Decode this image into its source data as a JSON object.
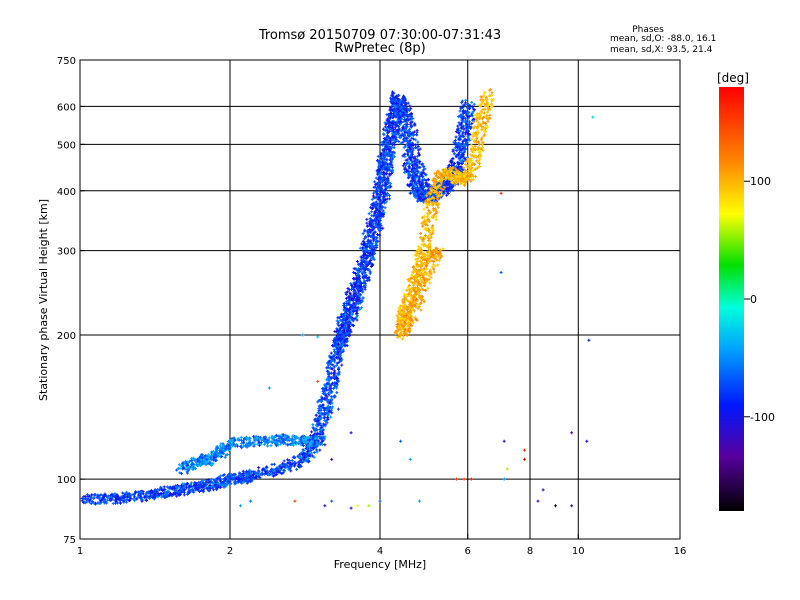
{
  "chart_data": {
    "type": "scatter",
    "title": "Tromsø 20150709 07:30:00-07:31:43",
    "subtitle": "RwPretec (8p)",
    "xlabel": "Frequency [MHz]",
    "ylabel": "Stationary phase Virtual Height [km]",
    "x_scale": "log",
    "y_scale": "log",
    "xlim": [
      1,
      16
    ],
    "ylim": [
      75,
      750
    ],
    "x_ticks": [
      1,
      2,
      4,
      6,
      8,
      10,
      16
    ],
    "y_ticks": [
      75,
      100,
      200,
      300,
      400,
      500,
      600,
      750
    ],
    "x_grid": [
      2,
      4,
      6,
      8,
      10
    ],
    "y_grid": [
      100,
      200,
      300,
      400,
      500,
      600
    ],
    "grid": true,
    "legend": {
      "header": "Phases",
      "line_o": "mean, sd,O: -88.0, 16.1",
      "line_x": "mean, sd,X:  93.5, 21.4"
    },
    "colorbar": {
      "label": "[deg]",
      "range": [
        -180,
        180
      ],
      "ticks": [
        100,
        0,
        -100
      ],
      "placement": "right"
    },
    "traces": [
      {
        "kind": "o",
        "phase": -88,
        "points": [
          [
            1.0,
            90
          ],
          [
            1.1,
            91
          ],
          [
            1.2,
            91
          ],
          [
            1.3,
            92
          ],
          [
            1.4,
            93
          ],
          [
            1.5,
            94
          ],
          [
            1.6,
            95
          ],
          [
            1.7,
            96
          ],
          [
            1.8,
            97
          ],
          [
            1.9,
            98
          ],
          [
            2.0,
            100
          ],
          [
            2.1,
            100
          ],
          [
            2.2,
            102
          ],
          [
            2.4,
            104
          ],
          [
            2.6,
            106
          ],
          [
            2.8,
            110
          ],
          [
            2.9,
            115
          ],
          [
            3.0,
            122
          ],
          [
            3.05,
            132
          ],
          [
            3.1,
            140
          ],
          [
            3.15,
            150
          ],
          [
            3.2,
            160
          ],
          [
            3.25,
            175
          ],
          [
            3.3,
            188
          ],
          [
            3.35,
            196
          ],
          [
            3.4,
            205
          ],
          [
            3.5,
            220
          ],
          [
            3.6,
            240
          ],
          [
            3.7,
            265
          ],
          [
            3.8,
            295
          ],
          [
            3.9,
            330
          ],
          [
            4.0,
            370
          ],
          [
            4.1,
            420
          ],
          [
            4.15,
            470
          ],
          [
            4.2,
            520
          ],
          [
            4.3,
            600
          ],
          [
            4.35,
            630
          ],
          [
            4.4,
            590
          ],
          [
            4.5,
            510
          ],
          [
            4.6,
            450
          ],
          [
            4.7,
            410
          ],
          [
            4.8,
            390
          ],
          [
            5.0,
            385
          ],
          [
            5.2,
            392
          ],
          [
            5.4,
            405
          ],
          [
            5.6,
            425
          ],
          [
            5.8,
            470
          ],
          [
            5.9,
            540
          ],
          [
            6.0,
            620
          ]
        ]
      },
      {
        "kind": "o",
        "phase": -95,
        "points": [
          [
            3.3,
            190
          ],
          [
            3.4,
            215
          ],
          [
            3.5,
            235
          ],
          [
            3.6,
            255
          ],
          [
            3.7,
            280
          ],
          [
            3.8,
            310
          ],
          [
            3.9,
            350
          ],
          [
            4.0,
            395
          ],
          [
            4.05,
            430
          ],
          [
            4.1,
            470
          ],
          [
            4.2,
            540
          ],
          [
            4.3,
            580
          ],
          [
            4.45,
            600
          ],
          [
            4.55,
            560
          ],
          [
            4.65,
            500
          ],
          [
            4.75,
            440
          ],
          [
            4.9,
            405
          ],
          [
            5.1,
            395
          ],
          [
            5.3,
            400
          ],
          [
            5.5,
            420
          ],
          [
            5.7,
            450
          ],
          [
            5.85,
            520
          ],
          [
            6.05,
            600
          ]
        ]
      },
      {
        "kind": "o",
        "phase": -70,
        "points": [
          [
            1.6,
            105
          ],
          [
            1.7,
            108
          ],
          [
            1.8,
            110
          ],
          [
            1.9,
            113
          ],
          [
            2.0,
            118
          ],
          [
            2.2,
            120
          ],
          [
            2.4,
            120
          ],
          [
            2.6,
            121
          ],
          [
            2.8,
            120
          ],
          [
            3.0,
            120
          ]
        ]
      },
      {
        "kind": "x",
        "phase": 92,
        "points": [
          [
            4.45,
            210
          ],
          [
            4.5,
            225
          ],
          [
            4.6,
            240
          ],
          [
            4.7,
            260
          ],
          [
            4.8,
            280
          ],
          [
            4.9,
            300
          ],
          [
            5.0,
            340
          ],
          [
            5.1,
            380
          ],
          [
            5.2,
            410
          ],
          [
            5.4,
            440
          ],
          [
            5.6,
            430
          ],
          [
            5.8,
            420
          ],
          [
            6.0,
            430
          ],
          [
            6.2,
            470
          ],
          [
            6.3,
            530
          ],
          [
            6.45,
            580
          ],
          [
            6.6,
            640
          ]
        ]
      },
      {
        "kind": "x",
        "phase": 100,
        "points": [
          [
            4.4,
            200
          ],
          [
            4.5,
            210
          ],
          [
            4.7,
            230
          ],
          [
            4.9,
            260
          ],
          [
            5.1,
            290
          ],
          [
            5.2,
            300
          ]
        ]
      }
    ],
    "outliers": [
      [
        3.0,
        198,
        -40
      ],
      [
        2.8,
        200,
        -60
      ],
      [
        3.0,
        160,
        150
      ],
      [
        2.4,
        155,
        -60
      ],
      [
        3.0,
        145,
        -80
      ],
      [
        3.3,
        140,
        -90
      ],
      [
        3.1,
        118,
        -150
      ],
      [
        3.2,
        110,
        -140
      ],
      [
        3.5,
        125,
        -100
      ],
      [
        4.4,
        120,
        -80
      ],
      [
        4.6,
        110,
        -60
      ],
      [
        5.7,
        100,
        160
      ],
      [
        5.9,
        100,
        150
      ],
      [
        6.1,
        100,
        170
      ],
      [
        7.1,
        100,
        -60
      ],
      [
        7.2,
        105,
        40
      ],
      [
        7.8,
        110,
        170
      ],
      [
        7.8,
        115,
        160
      ],
      [
        7.1,
        120,
        -120
      ],
      [
        8.5,
        95,
        -120
      ],
      [
        8.3,
        90,
        -130
      ],
      [
        9.0,
        88,
        -160
      ],
      [
        9.7,
        88,
        -150
      ],
      [
        9.7,
        125,
        -140
      ],
      [
        10.4,
        120,
        -110
      ],
      [
        10.5,
        195,
        -100
      ],
      [
        10.7,
        570,
        -40
      ],
      [
        7.0,
        395,
        160
      ],
      [
        7.0,
        270,
        -80
      ],
      [
        2.7,
        90,
        150
      ],
      [
        4.0,
        90,
        -80
      ],
      [
        4.8,
        90,
        -60
      ],
      [
        3.8,
        88,
        40
      ],
      [
        3.6,
        88,
        60
      ],
      [
        3.2,
        90,
        -80
      ],
      [
        3.5,
        87,
        -120
      ],
      [
        3.1,
        88,
        -110
      ],
      [
        2.2,
        90,
        -70
      ],
      [
        2.1,
        88,
        -60
      ]
    ]
  }
}
